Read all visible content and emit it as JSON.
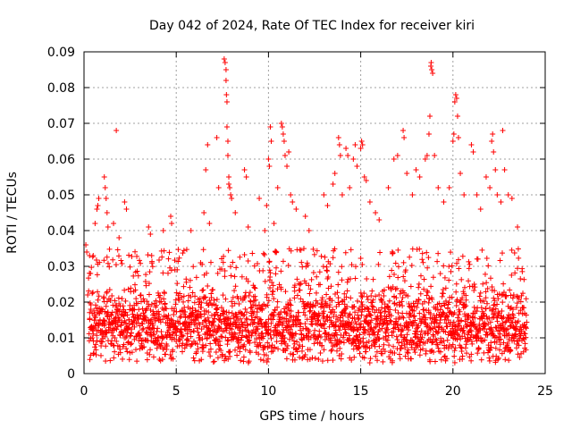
{
  "chart_data": {
    "type": "scatter",
    "title": "Day 042 of 2024, Rate Of TEC Index for receiver kiri",
    "xlabel": "GPS time / hours",
    "ylabel": "ROTI / TECUs",
    "xlim": [
      0,
      25
    ],
    "ylim": [
      0,
      0.09
    ],
    "xticks": [
      0,
      5,
      10,
      15,
      20,
      25
    ],
    "xtick_labels": [
      "0",
      "5",
      "10",
      "15",
      "20",
      "25"
    ],
    "yticks": [
      0,
      0.01,
      0.02,
      0.03,
      0.04,
      0.05,
      0.06,
      0.07,
      0.08,
      0.09
    ],
    "ytick_labels": [
      "0",
      "0.01",
      "0.02",
      "0.03",
      "0.04",
      "0.05",
      "0.06",
      "0.07",
      "0.08",
      "0.09"
    ],
    "grid": true,
    "marker": "+",
    "color": "#ff0000",
    "series": [
      {
        "name": "ROTI",
        "description": "dense band of ROTI samples between 0 and 24 h, mostly 0.005-0.025 TECU/min",
        "baseline_mean": 0.013,
        "baseline_spread": 0.006,
        "points": [
          [
            0.1,
            0.036
          ],
          [
            0.15,
            0.034
          ],
          [
            0.2,
            0.022
          ],
          [
            0.3,
            0.033
          ],
          [
            0.35,
            0.028
          ],
          [
            0.5,
            0.033
          ],
          [
            0.6,
            0.042
          ],
          [
            0.7,
            0.046
          ],
          [
            0.75,
            0.047
          ],
          [
            0.8,
            0.049
          ],
          [
            1.1,
            0.055
          ],
          [
            1.15,
            0.052
          ],
          [
            1.2,
            0.049
          ],
          [
            1.25,
            0.045
          ],
          [
            1.3,
            0.041
          ],
          [
            1.6,
            0.042
          ],
          [
            1.75,
            0.068
          ],
          [
            1.9,
            0.038
          ],
          [
            2.2,
            0.048
          ],
          [
            2.3,
            0.046
          ],
          [
            3.5,
            0.041
          ],
          [
            3.6,
            0.039
          ],
          [
            4.3,
            0.04
          ],
          [
            4.7,
            0.044
          ],
          [
            4.75,
            0.042
          ],
          [
            5.8,
            0.04
          ],
          [
            6.5,
            0.045
          ],
          [
            6.6,
            0.057
          ],
          [
            6.7,
            0.064
          ],
          [
            6.8,
            0.042
          ],
          [
            7.2,
            0.066
          ],
          [
            7.3,
            0.052
          ],
          [
            7.6,
            0.088
          ],
          [
            7.65,
            0.087
          ],
          [
            7.7,
            0.085
          ],
          [
            7.7,
            0.082
          ],
          [
            7.72,
            0.078
          ],
          [
            7.75,
            0.076
          ],
          [
            7.75,
            0.069
          ],
          [
            7.8,
            0.065
          ],
          [
            7.8,
            0.061
          ],
          [
            7.85,
            0.055
          ],
          [
            7.85,
            0.053
          ],
          [
            7.9,
            0.052
          ],
          [
            7.95,
            0.05
          ],
          [
            8.0,
            0.049
          ],
          [
            8.2,
            0.045
          ],
          [
            8.7,
            0.057
          ],
          [
            8.8,
            0.055
          ],
          [
            8.9,
            0.041
          ],
          [
            9.5,
            0.049
          ],
          [
            9.8,
            0.04
          ],
          [
            9.9,
            0.047
          ],
          [
            10.0,
            0.06
          ],
          [
            10.05,
            0.058
          ],
          [
            10.1,
            0.069
          ],
          [
            10.15,
            0.065
          ],
          [
            10.3,
            0.042
          ],
          [
            10.5,
            0.052
          ],
          [
            10.7,
            0.07
          ],
          [
            10.75,
            0.069
          ],
          [
            10.8,
            0.067
          ],
          [
            10.85,
            0.065
          ],
          [
            10.9,
            0.061
          ],
          [
            11.0,
            0.058
          ],
          [
            11.1,
            0.062
          ],
          [
            11.2,
            0.05
          ],
          [
            11.3,
            0.048
          ],
          [
            11.5,
            0.046
          ],
          [
            12.0,
            0.044
          ],
          [
            12.2,
            0.04
          ],
          [
            13.0,
            0.05
          ],
          [
            13.2,
            0.047
          ],
          [
            13.5,
            0.053
          ],
          [
            13.6,
            0.056
          ],
          [
            13.8,
            0.066
          ],
          [
            13.85,
            0.064
          ],
          [
            13.9,
            0.061
          ],
          [
            14.0,
            0.05
          ],
          [
            14.2,
            0.063
          ],
          [
            14.3,
            0.061
          ],
          [
            14.4,
            0.052
          ],
          [
            14.6,
            0.06
          ],
          [
            14.7,
            0.064
          ],
          [
            14.8,
            0.058
          ],
          [
            15.0,
            0.063
          ],
          [
            15.05,
            0.065
          ],
          [
            15.1,
            0.064
          ],
          [
            15.2,
            0.055
          ],
          [
            15.3,
            0.054
          ],
          [
            15.5,
            0.048
          ],
          [
            15.8,
            0.045
          ],
          [
            16.0,
            0.043
          ],
          [
            16.5,
            0.052
          ],
          [
            16.8,
            0.06
          ],
          [
            17.0,
            0.061
          ],
          [
            17.3,
            0.068
          ],
          [
            17.35,
            0.066
          ],
          [
            17.5,
            0.056
          ],
          [
            17.8,
            0.05
          ],
          [
            18.0,
            0.057
          ],
          [
            18.2,
            0.055
          ],
          [
            18.5,
            0.06
          ],
          [
            18.6,
            0.061
          ],
          [
            18.7,
            0.067
          ],
          [
            18.75,
            0.072
          ],
          [
            18.8,
            0.086
          ],
          [
            18.82,
            0.087
          ],
          [
            18.85,
            0.085
          ],
          [
            18.9,
            0.084
          ],
          [
            19.0,
            0.061
          ],
          [
            19.2,
            0.052
          ],
          [
            19.5,
            0.048
          ],
          [
            19.8,
            0.052
          ],
          [
            20.0,
            0.065
          ],
          [
            20.05,
            0.067
          ],
          [
            20.1,
            0.076
          ],
          [
            20.15,
            0.078
          ],
          [
            20.2,
            0.077
          ],
          [
            20.25,
            0.072
          ],
          [
            20.3,
            0.066
          ],
          [
            20.4,
            0.056
          ],
          [
            20.6,
            0.05
          ],
          [
            21.0,
            0.064
          ],
          [
            21.1,
            0.062
          ],
          [
            21.3,
            0.05
          ],
          [
            21.5,
            0.046
          ],
          [
            21.8,
            0.055
          ],
          [
            22.0,
            0.052
          ],
          [
            22.1,
            0.065
          ],
          [
            22.15,
            0.067
          ],
          [
            22.2,
            0.062
          ],
          [
            22.3,
            0.057
          ],
          [
            22.4,
            0.05
          ],
          [
            22.6,
            0.048
          ],
          [
            22.7,
            0.068
          ],
          [
            22.8,
            0.057
          ],
          [
            23.0,
            0.05
          ],
          [
            23.2,
            0.049
          ],
          [
            23.5,
            0.041
          ]
        ]
      }
    ]
  }
}
